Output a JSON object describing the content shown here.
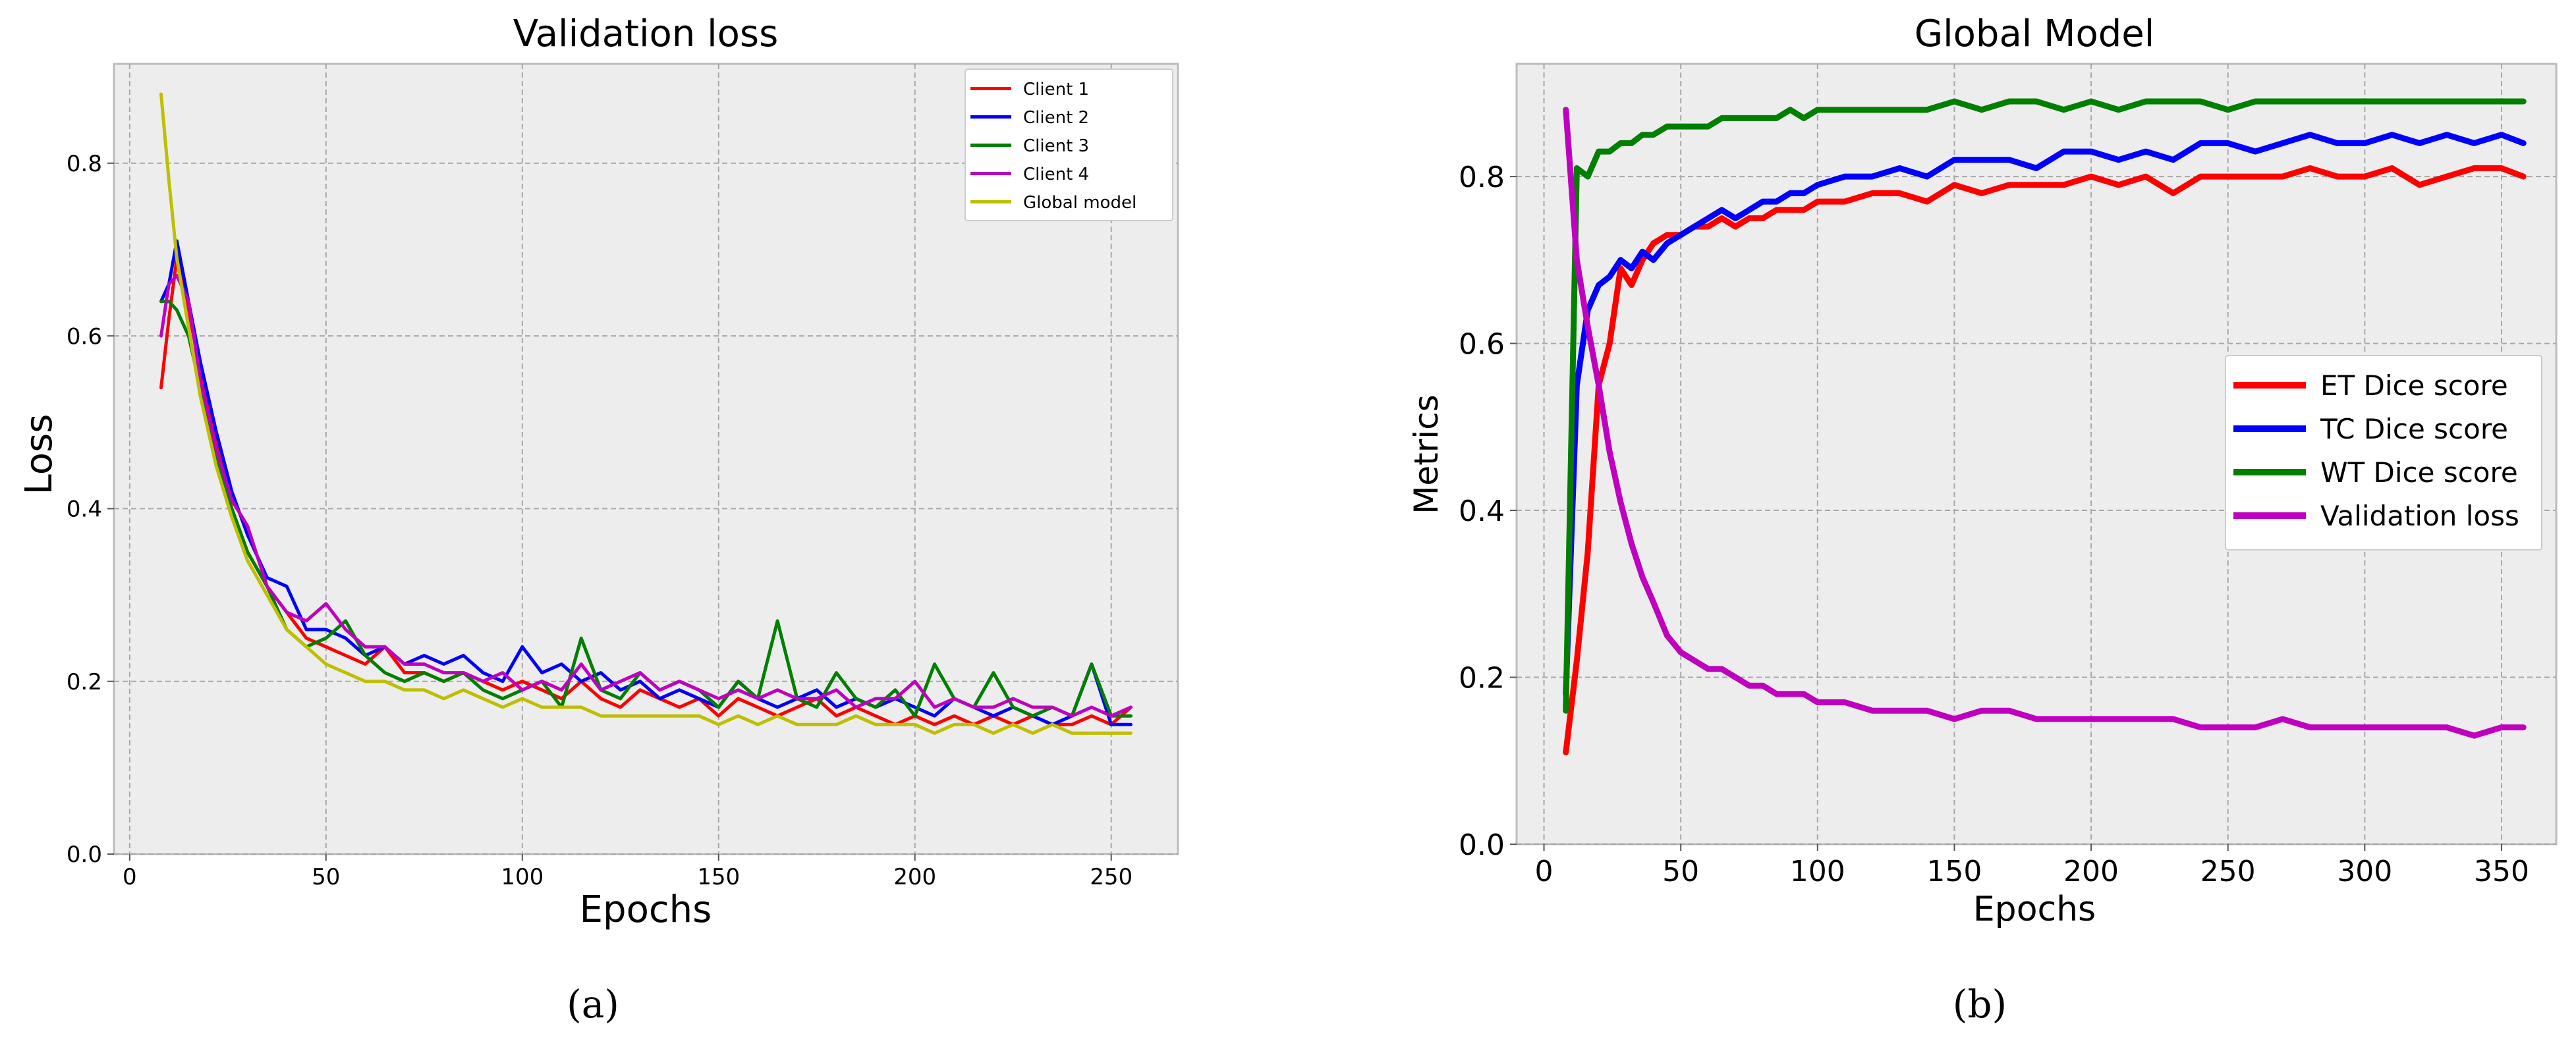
{
  "chart_data": [
    {
      "type": "line",
      "title": "Validation loss",
      "xlabel": "Epochs",
      "ylabel": "Loss",
      "panel_label": "(a)",
      "xlim": [
        -4,
        267
      ],
      "ylim": [
        0,
        0.915
      ],
      "xticks": [
        0,
        50,
        100,
        150,
        200,
        250
      ],
      "yticks": [
        0.0,
        0.2,
        0.4,
        0.6,
        0.8
      ],
      "ytick_labels": [
        "0.0",
        "0.2",
        "0.4",
        "0.6",
        "0.8"
      ],
      "grid": true,
      "legend_position": "upper-right",
      "background": "#ededed",
      "series": [
        {
          "name": "Client 1",
          "color": "#ff0000",
          "x": [
            8,
            10,
            12,
            15,
            18,
            22,
            26,
            30,
            35,
            40,
            45,
            50,
            55,
            60,
            65,
            70,
            75,
            80,
            85,
            90,
            95,
            100,
            105,
            110,
            115,
            120,
            125,
            130,
            135,
            140,
            145,
            150,
            155,
            160,
            165,
            170,
            175,
            180,
            185,
            190,
            195,
            200,
            205,
            210,
            215,
            220,
            225,
            230,
            235,
            240,
            245,
            250,
            255
          ],
          "y": [
            0.54,
            0.62,
            0.69,
            0.63,
            0.56,
            0.48,
            0.4,
            0.35,
            0.31,
            0.28,
            0.25,
            0.24,
            0.23,
            0.22,
            0.24,
            0.21,
            0.21,
            0.2,
            0.21,
            0.2,
            0.19,
            0.2,
            0.19,
            0.18,
            0.2,
            0.18,
            0.17,
            0.19,
            0.18,
            0.17,
            0.18,
            0.16,
            0.18,
            0.17,
            0.16,
            0.17,
            0.18,
            0.16,
            0.17,
            0.16,
            0.15,
            0.16,
            0.15,
            0.16,
            0.15,
            0.16,
            0.15,
            0.16,
            0.15,
            0.15,
            0.16,
            0.15,
            0.17
          ]
        },
        {
          "name": "Client 2",
          "color": "#0000ff",
          "x": [
            8,
            10,
            12,
            15,
            18,
            22,
            26,
            30,
            35,
            40,
            45,
            50,
            55,
            60,
            65,
            70,
            75,
            80,
            85,
            90,
            95,
            100,
            105,
            110,
            115,
            120,
            125,
            130,
            135,
            140,
            145,
            150,
            155,
            160,
            165,
            170,
            175,
            180,
            185,
            190,
            195,
            200,
            205,
            210,
            215,
            220,
            225,
            230,
            235,
            240,
            245,
            250,
            255
          ],
          "y": [
            0.64,
            0.66,
            0.71,
            0.64,
            0.57,
            0.49,
            0.42,
            0.37,
            0.32,
            0.31,
            0.26,
            0.26,
            0.25,
            0.23,
            0.24,
            0.22,
            0.23,
            0.22,
            0.23,
            0.21,
            0.2,
            0.24,
            0.21,
            0.22,
            0.2,
            0.21,
            0.19,
            0.2,
            0.18,
            0.19,
            0.18,
            0.17,
            0.2,
            0.18,
            0.17,
            0.18,
            0.19,
            0.17,
            0.18,
            0.17,
            0.18,
            0.17,
            0.16,
            0.18,
            0.17,
            0.16,
            0.17,
            0.16,
            0.15,
            0.16,
            0.22,
            0.15,
            0.15
          ]
        },
        {
          "name": "Client 3",
          "color": "#007f00",
          "x": [
            8,
            10,
            12,
            15,
            18,
            22,
            26,
            30,
            35,
            40,
            45,
            50,
            55,
            60,
            65,
            70,
            75,
            80,
            85,
            90,
            95,
            100,
            105,
            110,
            115,
            120,
            125,
            130,
            135,
            140,
            145,
            150,
            155,
            160,
            165,
            170,
            175,
            180,
            185,
            190,
            195,
            200,
            205,
            210,
            215,
            220,
            225,
            230,
            235,
            240,
            245,
            250,
            255
          ],
          "y": [
            0.64,
            0.64,
            0.63,
            0.6,
            0.54,
            0.46,
            0.4,
            0.35,
            0.31,
            0.26,
            0.24,
            0.25,
            0.27,
            0.23,
            0.21,
            0.2,
            0.21,
            0.2,
            0.21,
            0.19,
            0.18,
            0.19,
            0.2,
            0.17,
            0.25,
            0.19,
            0.18,
            0.21,
            0.19,
            0.2,
            0.19,
            0.17,
            0.2,
            0.18,
            0.27,
            0.18,
            0.17,
            0.21,
            0.18,
            0.17,
            0.19,
            0.16,
            0.22,
            0.18,
            0.17,
            0.21,
            0.17,
            0.16,
            0.17,
            0.16,
            0.22,
            0.16,
            0.16
          ]
        },
        {
          "name": "Client 4",
          "color": "#bf00bf",
          "x": [
            8,
            10,
            12,
            15,
            18,
            22,
            26,
            30,
            35,
            40,
            45,
            50,
            55,
            60,
            65,
            70,
            75,
            80,
            85,
            90,
            95,
            100,
            105,
            110,
            115,
            120,
            125,
            130,
            135,
            140,
            145,
            150,
            155,
            160,
            165,
            170,
            175,
            180,
            185,
            190,
            195,
            200,
            205,
            210,
            215,
            220,
            225,
            230,
            235,
            240,
            245,
            250,
            255
          ],
          "y": [
            0.6,
            0.66,
            0.67,
            0.64,
            0.55,
            0.47,
            0.41,
            0.38,
            0.31,
            0.28,
            0.27,
            0.29,
            0.26,
            0.24,
            0.24,
            0.22,
            0.22,
            0.21,
            0.21,
            0.2,
            0.21,
            0.19,
            0.2,
            0.19,
            0.22,
            0.19,
            0.2,
            0.21,
            0.19,
            0.2,
            0.19,
            0.18,
            0.19,
            0.18,
            0.19,
            0.18,
            0.18,
            0.19,
            0.17,
            0.18,
            0.18,
            0.2,
            0.17,
            0.18,
            0.17,
            0.17,
            0.18,
            0.17,
            0.17,
            0.16,
            0.17,
            0.16,
            0.17
          ]
        },
        {
          "name": "Global model",
          "color": "#bfbf00",
          "x": [
            8,
            10,
            12,
            15,
            18,
            22,
            26,
            30,
            35,
            40,
            45,
            50,
            55,
            60,
            65,
            70,
            75,
            80,
            85,
            90,
            95,
            100,
            105,
            110,
            115,
            120,
            125,
            130,
            135,
            140,
            145,
            150,
            155,
            160,
            165,
            170,
            175,
            180,
            185,
            190,
            195,
            200,
            205,
            210,
            215,
            220,
            225,
            230,
            235,
            240,
            245,
            250,
            255
          ],
          "y": [
            0.88,
            0.78,
            0.69,
            0.61,
            0.53,
            0.45,
            0.39,
            0.34,
            0.3,
            0.26,
            0.24,
            0.22,
            0.21,
            0.2,
            0.2,
            0.19,
            0.19,
            0.18,
            0.19,
            0.18,
            0.17,
            0.18,
            0.17,
            0.17,
            0.17,
            0.16,
            0.16,
            0.16,
            0.16,
            0.16,
            0.16,
            0.15,
            0.16,
            0.15,
            0.16,
            0.15,
            0.15,
            0.15,
            0.16,
            0.15,
            0.15,
            0.15,
            0.14,
            0.15,
            0.15,
            0.14,
            0.15,
            0.14,
            0.15,
            0.14,
            0.14,
            0.14,
            0.14
          ]
        }
      ]
    },
    {
      "type": "line",
      "title": "Global Model",
      "xlabel": "Epochs",
      "ylabel": "Metrics",
      "panel_label": "(b)",
      "xlim": [
        -10,
        370
      ],
      "ylim": [
        0,
        0.935
      ],
      "xticks": [
        0,
        50,
        100,
        150,
        200,
        250,
        300,
        350
      ],
      "yticks": [
        0.0,
        0.2,
        0.4,
        0.6,
        0.8
      ],
      "ytick_labels": [
        "0.0",
        "0.2",
        "0.4",
        "0.6",
        "0.8"
      ],
      "grid": true,
      "legend_position": "center-right",
      "background": "#ededed",
      "series": [
        {
          "name": "ET Dice score",
          "color": "#ff0000",
          "x": [
            8,
            12,
            16,
            20,
            24,
            28,
            32,
            36,
            40,
            45,
            50,
            55,
            60,
            65,
            70,
            75,
            80,
            85,
            90,
            95,
            100,
            110,
            120,
            130,
            140,
            150,
            160,
            170,
            180,
            190,
            200,
            210,
            220,
            230,
            240,
            250,
            260,
            270,
            280,
            290,
            300,
            310,
            320,
            330,
            340,
            350,
            358
          ],
          "y": [
            0.11,
            0.22,
            0.35,
            0.55,
            0.6,
            0.69,
            0.67,
            0.7,
            0.72,
            0.73,
            0.73,
            0.74,
            0.74,
            0.75,
            0.74,
            0.75,
            0.75,
            0.76,
            0.76,
            0.76,
            0.77,
            0.77,
            0.78,
            0.78,
            0.77,
            0.79,
            0.78,
            0.79,
            0.79,
            0.79,
            0.8,
            0.79,
            0.8,
            0.78,
            0.8,
            0.8,
            0.8,
            0.8,
            0.81,
            0.8,
            0.8,
            0.81,
            0.79,
            0.8,
            0.81,
            0.81,
            0.8
          ]
        },
        {
          "name": "TC Dice score",
          "color": "#0000ff",
          "x": [
            8,
            12,
            16,
            20,
            24,
            28,
            32,
            36,
            40,
            45,
            50,
            55,
            60,
            65,
            70,
            75,
            80,
            85,
            90,
            95,
            100,
            110,
            120,
            130,
            140,
            150,
            160,
            170,
            180,
            190,
            200,
            210,
            220,
            230,
            240,
            250,
            260,
            270,
            280,
            290,
            300,
            310,
            320,
            330,
            340,
            350,
            358
          ],
          "y": [
            0.18,
            0.55,
            0.64,
            0.67,
            0.68,
            0.7,
            0.69,
            0.71,
            0.7,
            0.72,
            0.73,
            0.74,
            0.75,
            0.76,
            0.75,
            0.76,
            0.77,
            0.77,
            0.78,
            0.78,
            0.79,
            0.8,
            0.8,
            0.81,
            0.8,
            0.82,
            0.82,
            0.82,
            0.81,
            0.83,
            0.83,
            0.82,
            0.83,
            0.82,
            0.84,
            0.84,
            0.83,
            0.84,
            0.85,
            0.84,
            0.84,
            0.85,
            0.84,
            0.85,
            0.84,
            0.85,
            0.84
          ]
        },
        {
          "name": "WT Dice score",
          "color": "#007f00",
          "x": [
            8,
            12,
            16,
            20,
            24,
            28,
            32,
            36,
            40,
            45,
            50,
            55,
            60,
            65,
            70,
            75,
            80,
            85,
            90,
            95,
            100,
            110,
            120,
            130,
            140,
            150,
            160,
            170,
            180,
            190,
            200,
            210,
            220,
            230,
            240,
            250,
            260,
            270,
            280,
            290,
            300,
            310,
            320,
            330,
            340,
            350,
            358
          ],
          "y": [
            0.16,
            0.81,
            0.8,
            0.83,
            0.83,
            0.84,
            0.84,
            0.85,
            0.85,
            0.86,
            0.86,
            0.86,
            0.86,
            0.87,
            0.87,
            0.87,
            0.87,
            0.87,
            0.88,
            0.87,
            0.88,
            0.88,
            0.88,
            0.88,
            0.88,
            0.89,
            0.88,
            0.89,
            0.89,
            0.88,
            0.89,
            0.88,
            0.89,
            0.89,
            0.89,
            0.88,
            0.89,
            0.89,
            0.89,
            0.89,
            0.89,
            0.89,
            0.89,
            0.89,
            0.89,
            0.89,
            0.89
          ]
        },
        {
          "name": "Validation loss",
          "color": "#bf00bf",
          "x": [
            8,
            12,
            16,
            20,
            24,
            28,
            32,
            36,
            40,
            45,
            50,
            55,
            60,
            65,
            70,
            75,
            80,
            85,
            90,
            95,
            100,
            110,
            120,
            130,
            140,
            150,
            160,
            170,
            180,
            190,
            200,
            210,
            220,
            230,
            240,
            250,
            260,
            270,
            280,
            290,
            300,
            310,
            320,
            330,
            340,
            350,
            358
          ],
          "y": [
            0.88,
            0.7,
            0.62,
            0.55,
            0.47,
            0.41,
            0.36,
            0.32,
            0.29,
            0.25,
            0.23,
            0.22,
            0.21,
            0.21,
            0.2,
            0.19,
            0.19,
            0.18,
            0.18,
            0.18,
            0.17,
            0.17,
            0.16,
            0.16,
            0.16,
            0.15,
            0.16,
            0.16,
            0.15,
            0.15,
            0.15,
            0.15,
            0.15,
            0.15,
            0.14,
            0.14,
            0.14,
            0.15,
            0.14,
            0.14,
            0.14,
            0.14,
            0.14,
            0.14,
            0.13,
            0.14,
            0.14
          ]
        }
      ]
    }
  ]
}
